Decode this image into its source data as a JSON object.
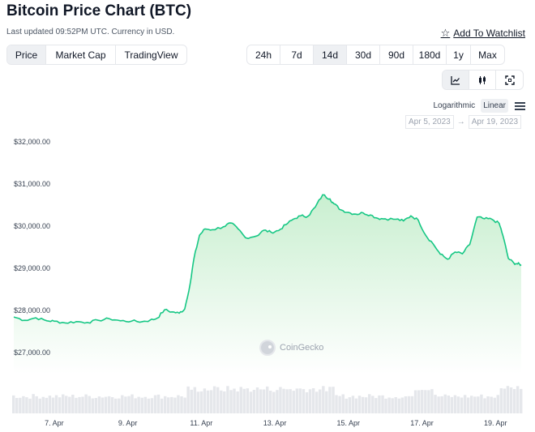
{
  "page": {
    "title": "Bitcoin Price Chart (BTC)",
    "updated": "Last updated 09:52PM UTC. Currency in USD.",
    "watchlist_label": "Add To Watchlist"
  },
  "chart_type_tabs": [
    "Price",
    "Market Cap",
    "TradingView"
  ],
  "active_chart_type": "Price",
  "range_tabs": [
    "24h",
    "7d",
    "14d",
    "30d",
    "90d",
    "180d",
    "1y",
    "Max"
  ],
  "active_range": "14d",
  "view_buttons": [
    {
      "icon": "line-chart-icon",
      "active": true
    },
    {
      "icon": "candlestick-icon",
      "active": false
    },
    {
      "icon": "fullscreen-icon",
      "active": false
    }
  ],
  "scale": {
    "options": [
      "Logarithmic",
      "Linear"
    ],
    "active": "Linear",
    "menu_icon": "hamburger-menu-icon"
  },
  "date_range": {
    "from": "Apr 5, 2023",
    "separator": "→",
    "to": "Apr 19, 2023"
  },
  "watermark": "CoinGecko",
  "colors": {
    "line": "#16c784",
    "fill_top": "#c9efd0",
    "fill_bottom": "#ffffff",
    "volume": "#e5e7eb"
  },
  "chart_data": {
    "type": "area",
    "y_ticks": [
      "$32,000.00",
      "$31,000.00",
      "$30,000.00",
      "$29,000.00",
      "$28,000.00",
      "$27,000.00"
    ],
    "y_tick_values": [
      32000,
      31000,
      30000,
      29000,
      28000,
      27000
    ],
    "ylim": [
      27000,
      32000
    ],
    "x_ticks": [
      "7. Apr",
      "9. Apr",
      "11. Apr",
      "13. Apr",
      "15. Apr",
      "17. Apr",
      "19. Apr"
    ],
    "x_tick_days": [
      7,
      9,
      11,
      13,
      15,
      17,
      19
    ],
    "xlim_days": [
      5.9,
      19.7
    ],
    "series": [
      {
        "values": [
          [
            5.9,
            27960
          ],
          [
            6.2,
            27880
          ],
          [
            6.5,
            27940
          ],
          [
            6.8,
            27870
          ],
          [
            7.0,
            27860
          ],
          [
            7.3,
            27820
          ],
          [
            7.6,
            27850
          ],
          [
            7.9,
            27830
          ],
          [
            8.2,
            27880
          ],
          [
            8.5,
            27920
          ],
          [
            8.8,
            27870
          ],
          [
            9.1,
            27860
          ],
          [
            9.4,
            27850
          ],
          [
            9.6,
            27880
          ],
          [
            9.8,
            27930
          ],
          [
            10.0,
            28130
          ],
          [
            10.2,
            28080
          ],
          [
            10.4,
            28050
          ],
          [
            10.55,
            28150
          ],
          [
            10.7,
            28760
          ],
          [
            10.8,
            29350
          ],
          [
            10.95,
            29900
          ],
          [
            11.1,
            30050
          ],
          [
            11.3,
            30030
          ],
          [
            11.6,
            30100
          ],
          [
            11.8,
            30190
          ],
          [
            12.0,
            30050
          ],
          [
            12.2,
            29840
          ],
          [
            12.5,
            29880
          ],
          [
            12.7,
            30020
          ],
          [
            12.9,
            29970
          ],
          [
            13.1,
            30010
          ],
          [
            13.3,
            30150
          ],
          [
            13.5,
            30280
          ],
          [
            13.7,
            30360
          ],
          [
            13.9,
            30350
          ],
          [
            14.1,
            30570
          ],
          [
            14.3,
            30860
          ],
          [
            14.5,
            30760
          ],
          [
            14.6,
            30650
          ],
          [
            14.8,
            30500
          ],
          [
            15.0,
            30440
          ],
          [
            15.2,
            30400
          ],
          [
            15.4,
            30430
          ],
          [
            15.6,
            30380
          ],
          [
            15.8,
            30300
          ],
          [
            16.0,
            30290
          ],
          [
            16.3,
            30280
          ],
          [
            16.5,
            30240
          ],
          [
            16.7,
            30360
          ],
          [
            16.9,
            30260
          ],
          [
            17.1,
            29900
          ],
          [
            17.3,
            29700
          ],
          [
            17.5,
            29450
          ],
          [
            17.7,
            29330
          ],
          [
            17.9,
            29500
          ],
          [
            18.1,
            29460
          ],
          [
            18.3,
            29680
          ],
          [
            18.5,
            30330
          ],
          [
            18.7,
            30290
          ],
          [
            18.9,
            30280
          ],
          [
            19.1,
            30180
          ],
          [
            19.2,
            29900
          ],
          [
            19.35,
            29350
          ],
          [
            19.5,
            29240
          ],
          [
            19.6,
            29220
          ],
          [
            19.7,
            29200
          ]
        ]
      }
    ],
    "grid": false,
    "legend": "none"
  }
}
